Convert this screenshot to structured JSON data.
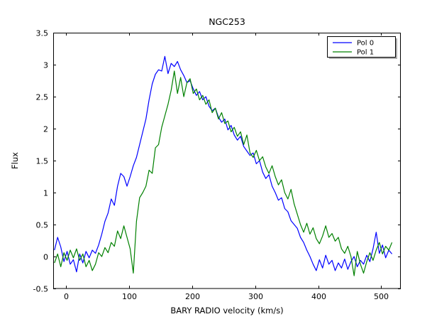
{
  "title": "NGC253",
  "chart_data": {
    "type": "line",
    "title": "NGC253",
    "xlabel": "BARY RADIO velocity (km/s)",
    "ylabel": "Flux",
    "xlim": [
      -20,
      531
    ],
    "ylim": [
      -0.5,
      3.5
    ],
    "xticks": [
      0,
      100,
      200,
      300,
      400,
      500
    ],
    "yticks": [
      -0.5,
      0,
      0.5,
      1,
      1.5,
      2,
      2.5,
      3,
      3.5
    ],
    "grid": false,
    "legend_position": "upper right",
    "background_color": "#ffffff",
    "frame_color": "#000000",
    "x": [
      -18,
      -13,
      -8,
      -3,
      2,
      7,
      12,
      17,
      22,
      27,
      32,
      37,
      42,
      47,
      52,
      57,
      62,
      67,
      72,
      77,
      82,
      87,
      92,
      97,
      102,
      107,
      112,
      117,
      122,
      127,
      132,
      137,
      142,
      147,
      152,
      157,
      162,
      167,
      172,
      177,
      182,
      187,
      192,
      197,
      202,
      207,
      212,
      217,
      222,
      227,
      232,
      237,
      242,
      247,
      252,
      257,
      262,
      267,
      272,
      277,
      282,
      287,
      292,
      297,
      302,
      307,
      312,
      317,
      322,
      327,
      332,
      337,
      342,
      347,
      352,
      357,
      362,
      367,
      372,
      377,
      382,
      387,
      392,
      397,
      402,
      407,
      412,
      417,
      422,
      427,
      432,
      437,
      442,
      447,
      452,
      457,
      462,
      467,
      472,
      477,
      482,
      487,
      492,
      497,
      502,
      507,
      512,
      517
    ],
    "series": [
      {
        "name": "Pol 0",
        "color": "#0000ff",
        "values": [
          0.1,
          0.3,
          0.15,
          -0.08,
          0.08,
          -0.12,
          -0.05,
          -0.24,
          0.04,
          -0.1,
          0.08,
          -0.02,
          0.1,
          0.05,
          0.18,
          0.35,
          0.55,
          0.68,
          0.9,
          0.8,
          1.1,
          1.3,
          1.25,
          1.1,
          1.25,
          1.42,
          1.55,
          1.75,
          1.95,
          2.15,
          2.45,
          2.7,
          2.85,
          2.92,
          2.9,
          3.13,
          2.86,
          3.02,
          2.97,
          3.05,
          2.92,
          2.83,
          2.72,
          2.75,
          2.62,
          2.52,
          2.58,
          2.45,
          2.5,
          2.35,
          2.28,
          2.32,
          2.18,
          2.1,
          2.15,
          1.98,
          2.05,
          1.9,
          1.82,
          1.88,
          1.72,
          1.65,
          1.58,
          1.62,
          1.45,
          1.5,
          1.32,
          1.22,
          1.28,
          1.1,
          1.0,
          0.88,
          0.92,
          0.75,
          0.7,
          0.56,
          0.5,
          0.44,
          0.3,
          0.22,
          0.1,
          0.0,
          -0.12,
          -0.22,
          -0.05,
          -0.18,
          0.02,
          -0.12,
          -0.06,
          -0.22,
          -0.1,
          -0.18,
          -0.04,
          -0.2,
          -0.08,
          0.0,
          -0.16,
          -0.06,
          -0.12,
          0.02,
          -0.08,
          0.12,
          0.38,
          0.05,
          0.18,
          -0.02,
          0.1,
          0.04
        ]
      },
      {
        "name": "Pol 1",
        "color": "#008000",
        "values": [
          -0.1,
          0.04,
          -0.16,
          0.06,
          -0.06,
          0.1,
          -0.02,
          0.12,
          -0.06,
          0.04,
          -0.16,
          -0.06,
          -0.22,
          -0.12,
          0.06,
          0.0,
          0.14,
          0.06,
          0.22,
          0.16,
          0.4,
          0.28,
          0.48,
          0.3,
          0.12,
          -0.26,
          0.55,
          0.92,
          1.0,
          1.1,
          1.35,
          1.3,
          1.7,
          1.75,
          2.02,
          2.2,
          2.38,
          2.6,
          2.9,
          2.55,
          2.8,
          2.5,
          2.72,
          2.78,
          2.55,
          2.62,
          2.45,
          2.52,
          2.38,
          2.45,
          2.25,
          2.32,
          2.15,
          2.25,
          2.08,
          2.12,
          1.95,
          2.02,
          1.88,
          1.95,
          1.75,
          1.9,
          1.62,
          1.55,
          1.66,
          1.5,
          1.56,
          1.4,
          1.3,
          1.42,
          1.25,
          1.12,
          1.2,
          1.0,
          0.9,
          1.05,
          0.82,
          0.66,
          0.5,
          0.38,
          0.52,
          0.35,
          0.45,
          0.28,
          0.2,
          0.32,
          0.48,
          0.3,
          0.36,
          0.24,
          0.3,
          0.12,
          0.05,
          0.16,
          0.0,
          -0.3,
          0.08,
          -0.12,
          -0.26,
          -0.08,
          0.06,
          -0.06,
          0.1,
          0.22,
          0.04,
          0.16,
          0.1,
          0.22
        ]
      }
    ]
  }
}
